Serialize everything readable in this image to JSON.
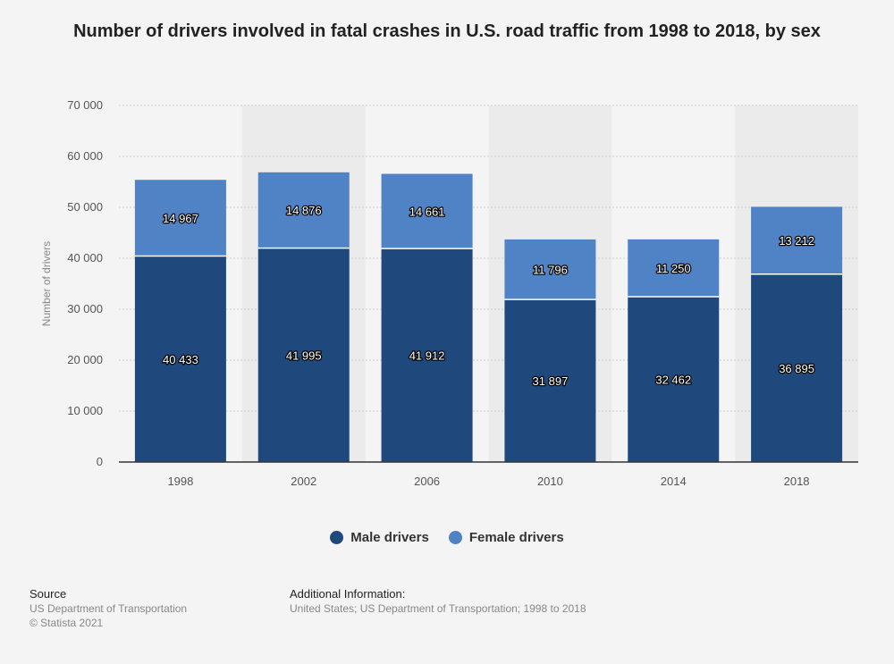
{
  "colors": {
    "male": "#1f487c",
    "female": "#4f83c5",
    "band": "#ebebeb",
    "grid": "#cccccc",
    "axis": "#333333"
  },
  "chart_data": {
    "type": "bar",
    "stacked": true,
    "title": "Number of drivers involved in fatal crashes in U.S. road traffic from 1998 to 2018, by sex",
    "xlabel": "",
    "ylabel": "Number of drivers",
    "ylim": [
      0,
      70000
    ],
    "yticks": [
      0,
      10000,
      20000,
      30000,
      40000,
      50000,
      60000,
      70000
    ],
    "ytick_labels": [
      "0",
      "10 000",
      "20 000",
      "30 000",
      "40 000",
      "50 000",
      "60 000",
      "70 000"
    ],
    "grid": true,
    "legend_position": "bottom-center",
    "categories": [
      "1998",
      "2002",
      "2006",
      "2010",
      "2014",
      "2018"
    ],
    "series": [
      {
        "name": "Male drivers",
        "values": [
          40433,
          41995,
          41912,
          31897,
          32462,
          36895
        ],
        "labels": [
          "40 433",
          "41 995",
          "41 912",
          "31 897",
          "32 462",
          "36 895"
        ]
      },
      {
        "name": "Female drivers",
        "values": [
          14967,
          14876,
          14661,
          11796,
          11250,
          13212
        ],
        "labels": [
          "14 967",
          "14 876",
          "14 661",
          "11 796",
          "11 250",
          "13 212"
        ]
      }
    ]
  },
  "footer": {
    "source_heading": "Source",
    "source_lines": [
      "US Department of Transportation",
      "© Statista 2021"
    ],
    "info_heading": "Additional Information:",
    "info_text": "United States; US Department of Transportation; 1998 to 2018"
  }
}
